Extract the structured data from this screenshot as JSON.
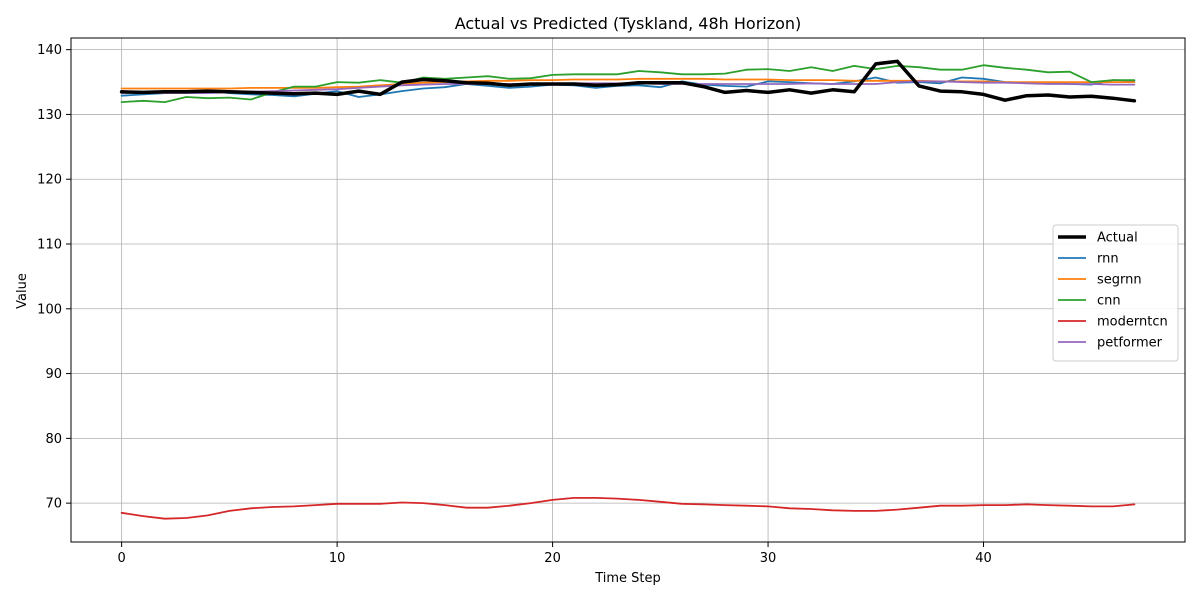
{
  "chart_data": {
    "type": "line",
    "title": "Actual vs Predicted (Tyskland, 48h Horizon)",
    "xlabel": "Time Step",
    "ylabel": "Value",
    "xlim": [
      -2.35,
      49.35
    ],
    "ylim": [
      64,
      141.8
    ],
    "xticks": [
      0,
      10,
      20,
      30,
      40
    ],
    "yticks": [
      70,
      80,
      90,
      100,
      110,
      120,
      130,
      140
    ],
    "grid": true,
    "legend_position": "center-right",
    "x": [
      0,
      1,
      2,
      3,
      4,
      5,
      6,
      7,
      8,
      9,
      10,
      11,
      12,
      13,
      14,
      15,
      16,
      17,
      18,
      19,
      20,
      21,
      22,
      23,
      24,
      25,
      26,
      27,
      28,
      29,
      30,
      31,
      32,
      33,
      34,
      35,
      36,
      37,
      38,
      39,
      40,
      41,
      42,
      43,
      44,
      45,
      46,
      47
    ],
    "series": [
      {
        "name": "Actual",
        "color": "#000000",
        "width": 3.5,
        "values": [
          133.5,
          133.4,
          133.5,
          133.5,
          133.6,
          133.5,
          133.4,
          133.3,
          133.2,
          133.3,
          133.1,
          133.6,
          133.1,
          135.0,
          135.4,
          135.2,
          134.9,
          134.8,
          134.5,
          134.7,
          134.7,
          134.7,
          134.5,
          134.6,
          134.9,
          134.9,
          134.9,
          134.3,
          133.4,
          133.7,
          133.4,
          133.8,
          133.3,
          133.8,
          133.5,
          137.8,
          138.2,
          134.4,
          133.6,
          133.5,
          133.1,
          132.2,
          132.9,
          133.0,
          132.7,
          132.8,
          132.5,
          132.1
        ]
      },
      {
        "name": "rnn",
        "color": "#1f77b4",
        "width": 1.8,
        "values": [
          132.9,
          133.1,
          133.3,
          133.4,
          133.6,
          133.3,
          133.1,
          133.0,
          132.8,
          133.2,
          133.6,
          132.7,
          133.1,
          133.6,
          134.0,
          134.2,
          134.7,
          134.4,
          134.1,
          134.3,
          134.6,
          134.5,
          134.1,
          134.4,
          134.5,
          134.2,
          135.1,
          134.6,
          134.4,
          134.3,
          135.1,
          135.0,
          134.8,
          134.7,
          135.1,
          135.7,
          134.9,
          135.0,
          134.8,
          135.7,
          135.5,
          135.0,
          134.9,
          134.9,
          134.7,
          134.6,
          135.3,
          135.2
        ]
      },
      {
        "name": "segrnn",
        "color": "#ff7f0e",
        "width": 1.8,
        "values": [
          134.0,
          134.0,
          134.0,
          134.0,
          134.0,
          134.0,
          134.1,
          134.1,
          134.1,
          134.1,
          134.2,
          134.3,
          134.5,
          134.7,
          134.9,
          135.0,
          135.1,
          135.2,
          135.2,
          135.3,
          135.3,
          135.4,
          135.4,
          135.4,
          135.5,
          135.5,
          135.5,
          135.5,
          135.4,
          135.4,
          135.4,
          135.3,
          135.3,
          135.3,
          135.2,
          135.2,
          135.2,
          135.2,
          135.1,
          135.1,
          135.1,
          135.0,
          135.0,
          135.0,
          135.0,
          135.0,
          135.0,
          135.0
        ]
      },
      {
        "name": "cnn",
        "color": "#2ca02c",
        "width": 1.8,
        "values": [
          131.9,
          132.1,
          131.9,
          132.7,
          132.5,
          132.6,
          132.3,
          133.4,
          134.3,
          134.3,
          135.0,
          134.9,
          135.3,
          134.9,
          135.7,
          135.5,
          135.7,
          135.9,
          135.5,
          135.6,
          136.1,
          136.2,
          136.2,
          136.2,
          136.7,
          136.5,
          136.2,
          136.2,
          136.3,
          136.9,
          137.0,
          136.7,
          137.3,
          136.7,
          137.5,
          137.0,
          137.5,
          137.3,
          136.9,
          136.9,
          137.6,
          137.2,
          136.9,
          136.5,
          136.6,
          135.0,
          135.3,
          135.3
        ]
      },
      {
        "name": "moderntcn",
        "color": "#d62728",
        "width": 1.8,
        "values": [
          68.5,
          68.0,
          67.6,
          67.7,
          68.1,
          68.8,
          69.2,
          69.4,
          69.5,
          69.7,
          69.9,
          69.9,
          69.9,
          70.1,
          70.0,
          69.7,
          69.3,
          69.3,
          69.6,
          70.0,
          70.5,
          70.8,
          70.8,
          70.7,
          70.5,
          70.2,
          69.9,
          69.8,
          69.7,
          69.6,
          69.5,
          69.2,
          69.1,
          68.9,
          68.8,
          68.8,
          69.0,
          69.3,
          69.6,
          69.6,
          69.7,
          69.7,
          69.8,
          69.7,
          69.6,
          69.5,
          69.5,
          69.8
        ]
      },
      {
        "name": "petformer",
        "color": "#9467bd",
        "width": 1.8,
        "values": [
          133.3,
          133.4,
          133.3,
          133.3,
          133.3,
          133.4,
          133.5,
          133.6,
          133.7,
          133.8,
          133.9,
          134.1,
          134.3,
          134.5,
          134.6,
          134.7,
          134.7,
          134.7,
          134.7,
          134.7,
          134.7,
          134.8,
          134.8,
          134.8,
          134.8,
          134.7,
          134.7,
          134.7,
          134.7,
          134.7,
          134.7,
          134.7,
          134.8,
          134.7,
          134.7,
          134.7,
          135.0,
          135.1,
          135.1,
          135.0,
          134.9,
          134.9,
          134.8,
          134.7,
          134.7,
          134.7,
          134.6,
          134.6
        ]
      }
    ]
  }
}
